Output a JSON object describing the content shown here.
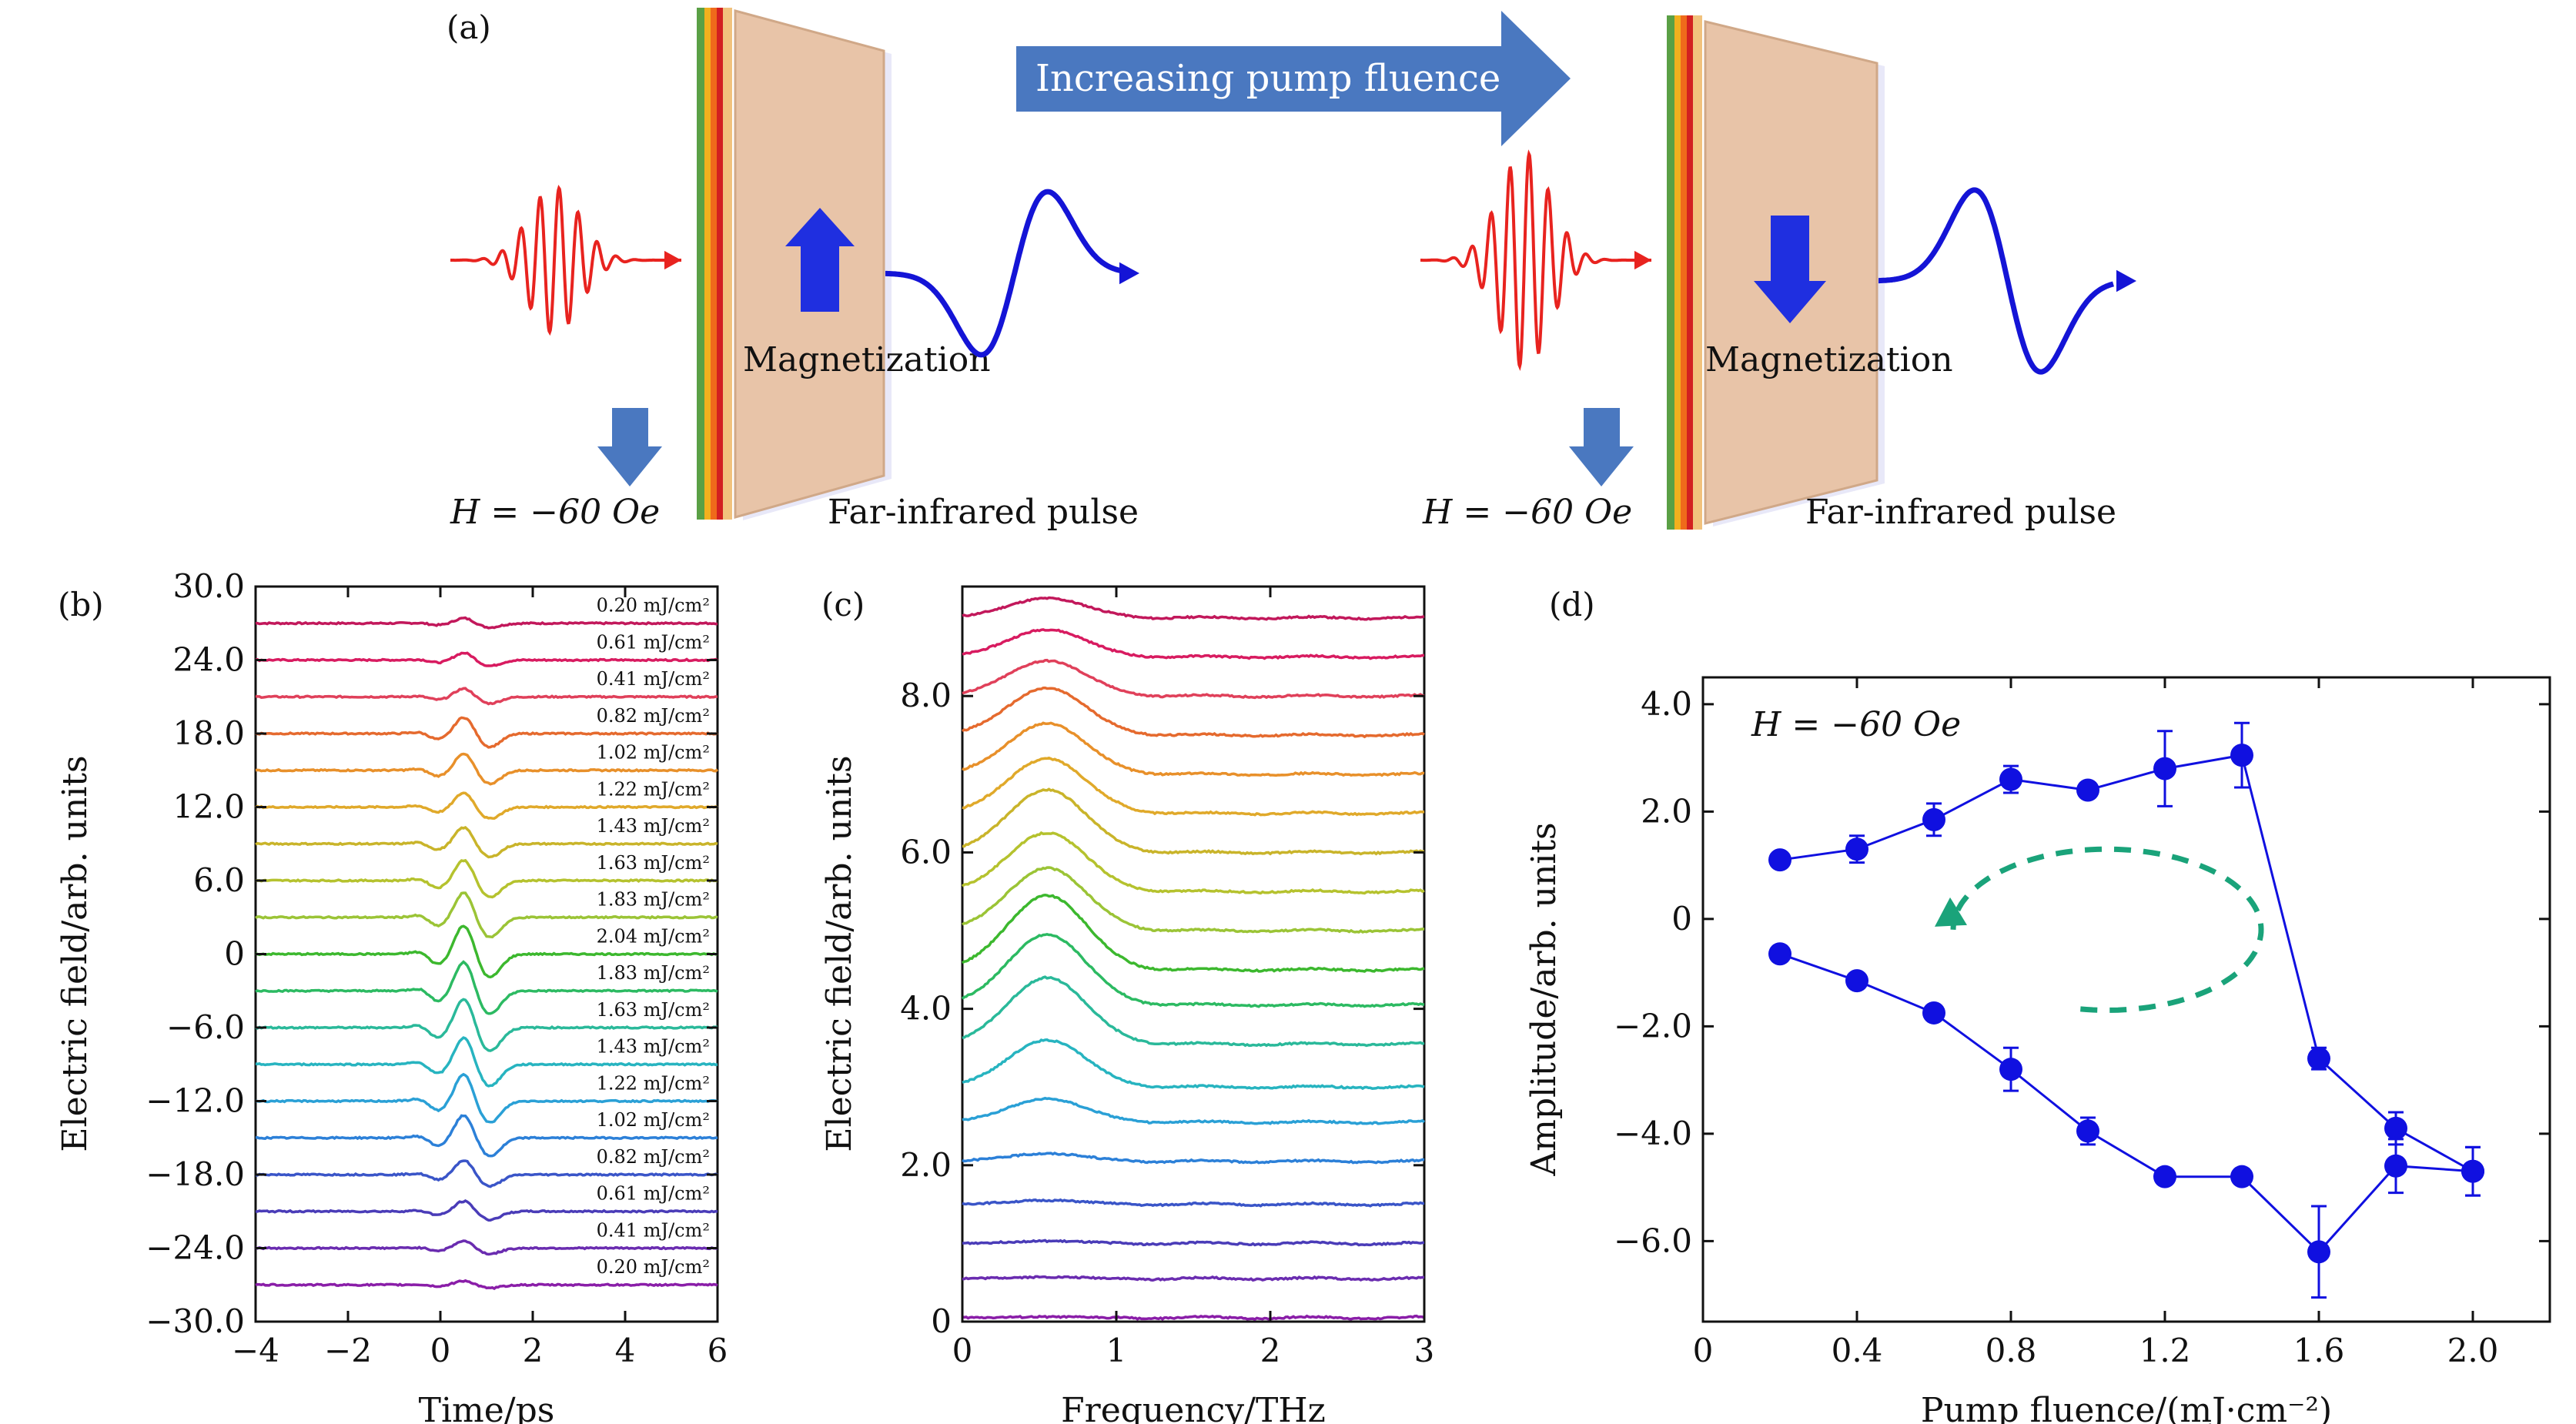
{
  "panel_a": {
    "label": "(a)",
    "arrow_text": "Increasing pump fluence",
    "left": {
      "magnetization_label": "Magnetization",
      "field_label": "H = −60 Oe",
      "pulse_label": "Far-infrared pulse",
      "magnetization_direction": "up"
    },
    "right": {
      "magnetization_label": "Magnetization",
      "field_label": "H = −60 Oe",
      "pulse_label": "Far-infrared pulse",
      "magnetization_direction": "down"
    },
    "colors": {
      "pump_pulse": "#e8231f",
      "thz_pulse": "#1414d6",
      "arrow": "#4a78c0",
      "film": "#e8c4a8",
      "magnetization_arrow": "#1f2fe0"
    }
  },
  "chart_data": [
    {
      "id": "b",
      "label": "(b)",
      "type": "line",
      "xlabel": "Time/ps",
      "ylabel": "Electric field/arb. units",
      "xlim": [
        -4,
        6
      ],
      "ylim": [
        -30,
        30
      ],
      "xticks": [
        "−4",
        "−2",
        "0",
        "2",
        "4",
        "6"
      ],
      "xtick_values": [
        -4,
        -2,
        0,
        2,
        4,
        6
      ],
      "yticks": [
        "−30.0",
        "−24.0",
        "−18.0",
        "−12.0",
        "−6.0",
        "0",
        "6.0",
        "12.0",
        "18.0",
        "24.0",
        "30.0"
      ],
      "ytick_values": [
        -30,
        -24,
        -18,
        -12,
        -6,
        0,
        6,
        12,
        18,
        24,
        30
      ],
      "series": [
        {
          "name": "0.20 mJ/cm²",
          "offset": 27.0,
          "amp": 0.5,
          "color": "#c2185b"
        },
        {
          "name": "0.61 mJ/cm²",
          "offset": 24.0,
          "amp": 0.7,
          "color": "#d81b60"
        },
        {
          "name": "0.41 mJ/cm²",
          "offset": 21.0,
          "amp": 0.8,
          "color": "#e0405a"
        },
        {
          "name": "0.82 mJ/cm²",
          "offset": 18.0,
          "amp": 1.6,
          "color": "#e56a2e"
        },
        {
          "name": "1.02 mJ/cm²",
          "offset": 15.0,
          "amp": 1.6,
          "color": "#e8902a"
        },
        {
          "name": "1.22 mJ/cm²",
          "offset": 12.0,
          "amp": 1.4,
          "color": "#e0a92a"
        },
        {
          "name": "1.43 mJ/cm²",
          "offset": 9.0,
          "amp": 1.6,
          "color": "#c9b42a"
        },
        {
          "name": "1.63 mJ/cm²",
          "offset": 6.0,
          "amp": 2.0,
          "color": "#b5c22e"
        },
        {
          "name": "1.83 mJ/cm²",
          "offset": 3.0,
          "amp": 2.4,
          "color": "#9bc436"
        },
        {
          "name": "2.04 mJ/cm²",
          "offset": 0.0,
          "amp": 2.8,
          "color": "#3cb82e"
        },
        {
          "name": "1.83 mJ/cm²",
          "offset": -3.0,
          "amp": 2.8,
          "color": "#2cba62"
        },
        {
          "name": "1.63 mJ/cm²",
          "offset": -6.0,
          "amp": 2.8,
          "color": "#2ab99a"
        },
        {
          "name": "1.43 mJ/cm²",
          "offset": -9.0,
          "amp": 2.6,
          "color": "#27b4c0"
        },
        {
          "name": "1.22 mJ/cm²",
          "offset": -12.0,
          "amp": 2.6,
          "color": "#2aa0d6"
        },
        {
          "name": "1.02 mJ/cm²",
          "offset": -15.0,
          "amp": 2.2,
          "color": "#2c80d8"
        },
        {
          "name": "0.82 mJ/cm²",
          "offset": -18.0,
          "amp": 1.4,
          "color": "#3a55c8"
        },
        {
          "name": "0.61 mJ/cm²",
          "offset": -21.0,
          "amp": 1.0,
          "color": "#4a3cb8"
        },
        {
          "name": "0.41 mJ/cm²",
          "offset": -24.0,
          "amp": 0.7,
          "color": "#6a2cb0"
        },
        {
          "name": "0.20 mJ/cm²",
          "offset": -27.0,
          "amp": 0.4,
          "color": "#8a1ea8"
        }
      ]
    },
    {
      "id": "c",
      "label": "(c)",
      "type": "line",
      "xlabel": "Frequency/THz",
      "ylabel": "Electric field/arb. units",
      "xlim": [
        0,
        3
      ],
      "ylim": [
        0,
        9.4
      ],
      "xticks": [
        "0",
        "1",
        "2",
        "3"
      ],
      "xtick_values": [
        0,
        1,
        2,
        3
      ],
      "yticks": [
        "0",
        "2.0",
        "4.0",
        "6.0",
        "8.0"
      ],
      "ytick_values": [
        0,
        2,
        4,
        6,
        8
      ],
      "series": [
        {
          "offset": 9.0,
          "peak": 0.25,
          "color": "#c2185b"
        },
        {
          "offset": 8.5,
          "peak": 0.35,
          "color": "#d81b60"
        },
        {
          "offset": 8.0,
          "peak": 0.45,
          "color": "#e0405a"
        },
        {
          "offset": 7.5,
          "peak": 0.6,
          "color": "#e56a2e"
        },
        {
          "offset": 7.0,
          "peak": 0.65,
          "color": "#e8902a"
        },
        {
          "offset": 6.5,
          "peak": 0.7,
          "color": "#e0a92a"
        },
        {
          "offset": 6.0,
          "peak": 0.8,
          "color": "#c9b42a"
        },
        {
          "offset": 5.5,
          "peak": 0.75,
          "color": "#b5c22e"
        },
        {
          "offset": 5.0,
          "peak": 0.8,
          "color": "#9bc436"
        },
        {
          "offset": 4.5,
          "peak": 0.95,
          "color": "#3cb82e"
        },
        {
          "offset": 4.05,
          "peak": 0.9,
          "color": "#2cba62"
        },
        {
          "offset": 3.55,
          "peak": 0.85,
          "color": "#2ab99a"
        },
        {
          "offset": 3.0,
          "peak": 0.6,
          "color": "#27b4c0"
        },
        {
          "offset": 2.55,
          "peak": 0.3,
          "color": "#2aa0d6"
        },
        {
          "offset": 2.05,
          "peak": 0.1,
          "color": "#2c80d8"
        },
        {
          "offset": 1.5,
          "peak": 0.05,
          "color": "#3a55c8"
        },
        {
          "offset": 1.0,
          "peak": 0.03,
          "color": "#4a3cb8"
        },
        {
          "offset": 0.55,
          "peak": 0.02,
          "color": "#6a2cb0"
        },
        {
          "offset": 0.05,
          "peak": 0.01,
          "color": "#8a1ea8"
        }
      ]
    },
    {
      "id": "d",
      "label": "(d)",
      "type": "scatter",
      "annotation": "H = −60 Oe",
      "xlabel": "Pump fluence/(mJ·cm⁻²)",
      "ylabel": "Amplitude/arb. units",
      "xlim": [
        0,
        2.2
      ],
      "ylim": [
        -7.5,
        4.5
      ],
      "xticks": [
        "0",
        "0.4",
        "0.8",
        "1.2",
        "1.6",
        "2.0"
      ],
      "xtick_values": [
        0,
        0.4,
        0.8,
        1.2,
        1.6,
        2.0
      ],
      "yticks": [
        "−6.0",
        "−4.0",
        "−2.0",
        "0",
        "2.0",
        "4.0"
      ],
      "ytick_values": [
        -6,
        -4,
        -2,
        0,
        2,
        4
      ],
      "color": "#1010e0",
      "loop_arrow_color": "#1aa37a",
      "series": [
        {
          "branch": "increasing",
          "points": [
            {
              "x": 0.2,
              "y": 1.1,
              "err": 0.1
            },
            {
              "x": 0.4,
              "y": 1.3,
              "err": 0.25
            },
            {
              "x": 0.6,
              "y": 1.85,
              "err": 0.3
            },
            {
              "x": 0.8,
              "y": 2.6,
              "err": 0.25
            },
            {
              "x": 1.0,
              "y": 2.4,
              "err": 0.1
            },
            {
              "x": 1.2,
              "y": 2.8,
              "err": 0.7
            },
            {
              "x": 1.4,
              "y": 3.05,
              "err": 0.6
            },
            {
              "x": 1.6,
              "y": -2.6,
              "err": 0.2
            },
            {
              "x": 1.8,
              "y": -3.9,
              "err": 0.3
            },
            {
              "x": 2.0,
              "y": -4.7,
              "err": 0.45
            }
          ]
        },
        {
          "branch": "decreasing",
          "points": [
            {
              "x": 2.0,
              "y": -4.7,
              "err": 0.45
            },
            {
              "x": 1.8,
              "y": -4.6,
              "err": 0.5
            },
            {
              "x": 1.6,
              "y": -6.2,
              "err": 0.85
            },
            {
              "x": 1.4,
              "y": -4.8,
              "err": 0.1
            },
            {
              "x": 1.2,
              "y": -4.8,
              "err": 0.1
            },
            {
              "x": 1.0,
              "y": -3.95,
              "err": 0.25
            },
            {
              "x": 0.8,
              "y": -2.8,
              "err": 0.4
            },
            {
              "x": 0.6,
              "y": -1.75,
              "err": 0.1
            },
            {
              "x": 0.4,
              "y": -1.15,
              "err": 0.1
            },
            {
              "x": 0.2,
              "y": -0.65,
              "err": 0.1
            }
          ]
        }
      ]
    }
  ]
}
